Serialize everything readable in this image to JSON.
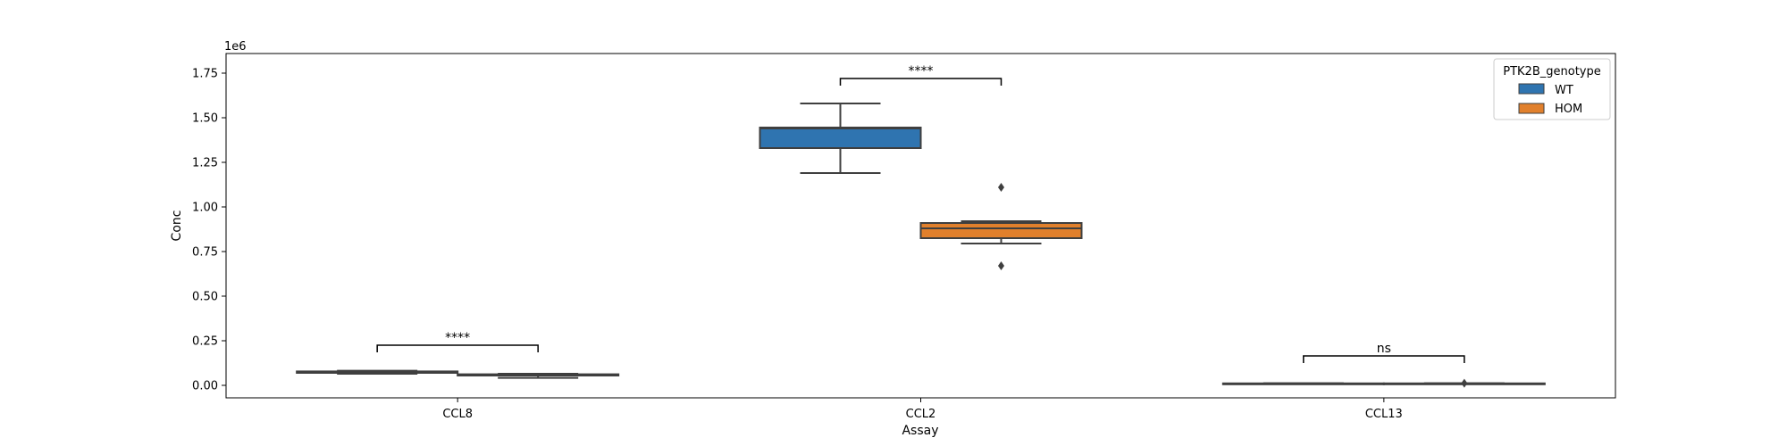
{
  "chart_data": {
    "type": "box",
    "title": "",
    "xlabel": "Assay",
    "ylabel": "Conc",
    "y_offset_text": "1e6",
    "y_scale": 1000000,
    "ylim": [
      -70000,
      1860000
    ],
    "yticks": [
      0,
      250000,
      500000,
      750000,
      1000000,
      1250000,
      1500000,
      1750000
    ],
    "ytick_labels": [
      "0.00",
      "0.25",
      "0.50",
      "0.75",
      "1.00",
      "1.25",
      "1.50",
      "1.75"
    ],
    "categories": [
      "CCL8",
      "CCL2",
      "CCL13"
    ],
    "legend": {
      "title": "PTK2B_genotype",
      "placement": "top-right",
      "entries": [
        "WT",
        "HOM"
      ]
    },
    "series": [
      {
        "name": "WT",
        "color": "#2f74b0",
        "boxes": [
          {
            "whislo": 65000,
            "q1": 70000,
            "med": 75000,
            "q3": 78000,
            "whishi": 82000,
            "fliers": []
          },
          {
            "whislo": 1190000,
            "q1": 1330000,
            "med": 1440000,
            "q3": 1445000,
            "whishi": 1580000,
            "fliers": []
          },
          {
            "whislo": 8000,
            "q1": 9000,
            "med": 10000,
            "q3": 11000,
            "whishi": 12000,
            "fliers": []
          }
        ]
      },
      {
        "name": "HOM",
        "color": "#e1802c",
        "boxes": [
          {
            "whislo": 42000,
            "q1": 55000,
            "med": 58000,
            "q3": 62000,
            "whishi": 65000,
            "fliers": []
          },
          {
            "whislo": 795000,
            "q1": 825000,
            "med": 880000,
            "q3": 910000,
            "whishi": 920000,
            "fliers": [
              1110000,
              670000
            ]
          },
          {
            "whislo": 8000,
            "q1": 9000,
            "med": 10000,
            "q3": 11000,
            "whishi": 12000,
            "fliers": [
              12000
            ]
          }
        ]
      }
    ],
    "annotations": [
      {
        "category": "CCL8",
        "text": "****",
        "y": 225000
      },
      {
        "category": "CCL2",
        "text": "****",
        "y": 1720000
      },
      {
        "category": "CCL13",
        "text": "ns",
        "y": 165000
      }
    ]
  }
}
